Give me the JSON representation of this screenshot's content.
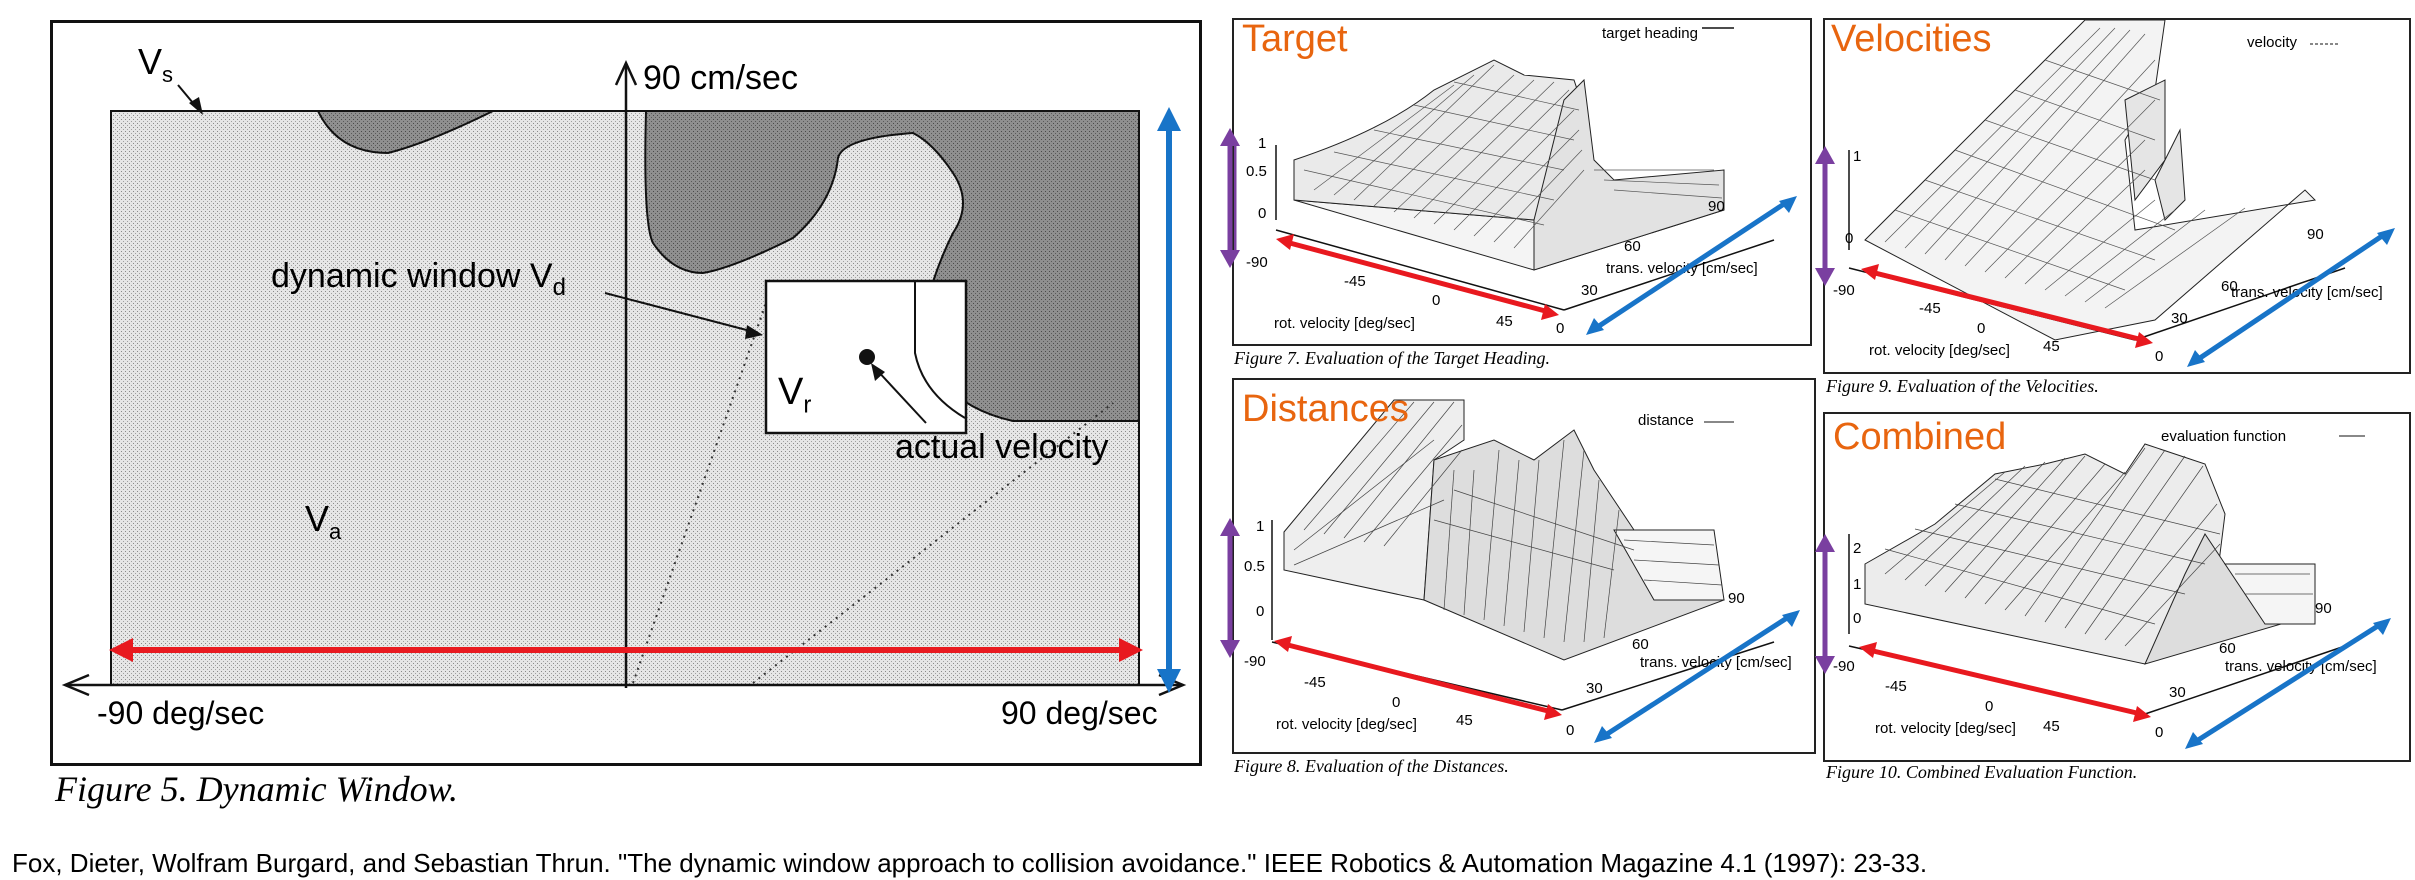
{
  "figure5": {
    "vs_label": "V",
    "vs_sub": "s",
    "top_axis": "90 cm/sec",
    "dw_label": "dynamic window V",
    "dw_sub": "d",
    "vr_label": "V",
    "vr_sub": "r",
    "actual_velocity": "actual velocity",
    "va_label": "V",
    "va_sub": "a",
    "left_axis": "-90 deg/sec",
    "right_axis": "90 deg/sec",
    "caption": "Figure 5. Dynamic Window."
  },
  "plots": [
    {
      "id": "target",
      "title": "Target",
      "legend": "target heading",
      "z_ticks": [
        "1",
        "0.5",
        "0"
      ],
      "rot_ticks": [
        "-90",
        "-45",
        "0",
        "45"
      ],
      "trans_ticks": [
        "0",
        "30",
        "60",
        "90"
      ],
      "rot_label": "rot. velocity [deg/sec]",
      "trans_label": "trans. velocity [cm/sec]",
      "caption": "Figure 7. Evaluation of the Target Heading."
    },
    {
      "id": "velocities",
      "title": "Velocities",
      "legend": "velocity",
      "z_ticks": [
        "1",
        "0"
      ],
      "rot_ticks": [
        "-90",
        "-45",
        "0",
        "45"
      ],
      "trans_ticks": [
        "0",
        "30",
        "60",
        "90"
      ],
      "rot_label": "rot. velocity [deg/sec]",
      "trans_label": "trans. velocity [cm/sec]",
      "caption": "Figure 9. Evaluation of the Velocities."
    },
    {
      "id": "distances",
      "title": "Distances",
      "legend": "distance",
      "z_ticks": [
        "1",
        "0.5",
        "0"
      ],
      "rot_ticks": [
        "-90",
        "-45",
        "0",
        "45"
      ],
      "trans_ticks": [
        "0",
        "30",
        "60",
        "90"
      ],
      "rot_label": "rot. velocity [deg/sec]",
      "trans_label": "trans. velocity [cm/sec]",
      "caption": "Figure 8. Evaluation of the Distances."
    },
    {
      "id": "combined",
      "title": "Combined",
      "legend": "evaluation function",
      "z_ticks": [
        "2",
        "1",
        "0"
      ],
      "rot_ticks": [
        "-90",
        "-45",
        "0",
        "45"
      ],
      "trans_ticks": [
        "0",
        "30",
        "60",
        "90"
      ],
      "rot_label": "rot. velocity [deg/sec]",
      "trans_label": "trans. velocity [cm/sec]",
      "caption": "Figure 10. Combined Evaluation Function."
    }
  ],
  "citation": "Fox, Dieter, Wolfram Burgard, and Sebastian Thrun. \"The dynamic window approach to collision avoidance.\" IEEE Robotics & Automation Magazine 4.1 (1997): 23-33.",
  "colors": {
    "title_orange": "#e8650f",
    "arrow_red": "#e8191f",
    "arrow_blue": "#1874c8",
    "arrow_purple": "#7a3fa0"
  }
}
